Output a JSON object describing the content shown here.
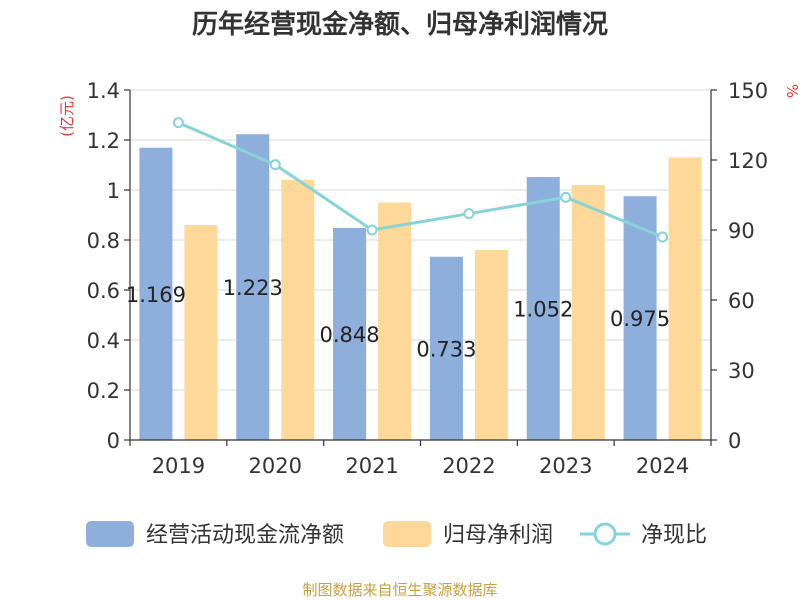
{
  "title": "历年经营现金净额、归母净利润情况",
  "source": "制图数据来自恒生聚源数据库",
  "colors": {
    "cash_flow": "#8eaedb",
    "net_profit": "#fdd899",
    "ratio": "#86d4d8",
    "unit_text": "#e53935",
    "source_text": "#c8a040"
  },
  "legend": {
    "cash_flow": "经营活动现金流净额",
    "net_profit": "归母净利润",
    "ratio": "净现比"
  },
  "chart_data": {
    "type": "bar",
    "title": "历年经营现金净额、归母净利润情况",
    "categories": [
      "2019",
      "2020",
      "2021",
      "2022",
      "2023",
      "2024"
    ],
    "y_left": {
      "unit": "(亿元)",
      "range": [
        0,
        1.4
      ],
      "ticks": [
        "0",
        "0.2",
        "0.4",
        "0.6",
        "0.8",
        "1",
        "1.2",
        "1.4"
      ],
      "grid": true
    },
    "y_right": {
      "unit": "%",
      "range": [
        0,
        150
      ],
      "ticks": [
        "0",
        "30",
        "60",
        "90",
        "120",
        "150"
      ]
    },
    "series": [
      {
        "name": "经营活动现金流净额",
        "type": "bar",
        "axis": "left",
        "values": [
          1.169,
          1.223,
          0.848,
          0.733,
          1.052,
          0.975
        ],
        "labels": [
          "1.169",
          "1.223",
          "0.848",
          "0.733",
          "1.052",
          "0.975"
        ]
      },
      {
        "name": "归母净利润",
        "type": "bar",
        "axis": "left",
        "values": [
          0.86,
          1.04,
          0.95,
          0.76,
          1.02,
          1.13
        ]
      },
      {
        "name": "净现比",
        "type": "line",
        "axis": "right",
        "values": [
          136,
          118,
          90,
          97,
          104,
          87
        ]
      }
    ],
    "legend_position": "bottom"
  }
}
